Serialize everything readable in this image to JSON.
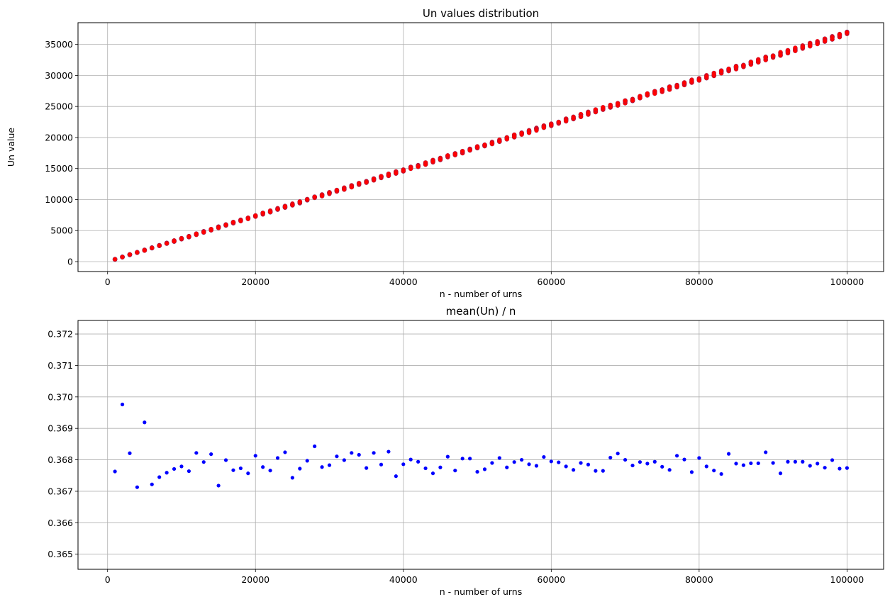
{
  "chart_data": [
    {
      "type": "scatter",
      "title": "Un values distribution",
      "xlabel": "n - number of urns",
      "ylabel": "Un value",
      "xlim": [
        -4000,
        104950
      ],
      "ylim": [
        -1600,
        38500
      ],
      "xticks": [
        0,
        20000,
        40000,
        60000,
        80000,
        100000
      ],
      "xtick_labels": [
        "0",
        "20000",
        "40000",
        "60000",
        "80000",
        "100000"
      ],
      "yticks": [
        0,
        5000,
        10000,
        15000,
        20000,
        25000,
        30000,
        35000
      ],
      "ytick_labels": [
        "0",
        "5000",
        "10000",
        "15000",
        "20000",
        "25000",
        "30000",
        "35000"
      ],
      "grid": true,
      "series": [
        {
          "color": "#ff0000",
          "marker": "circle",
          "x_range": [
            1000,
            100000
          ],
          "x_step": 1000,
          "points_per_x": 10,
          "approx_relation": "y = 0.3679 * x",
          "y_at_x_start": 368,
          "y_at_x_end": 36790
        }
      ]
    },
    {
      "type": "scatter",
      "title": "mean(Un) / n",
      "xlabel": "n - number of urns",
      "ylabel": "",
      "xlim": [
        -4000,
        104950
      ],
      "ylim": [
        0.36452,
        0.37243
      ],
      "xticks": [
        0,
        20000,
        40000,
        60000,
        80000,
        100000
      ],
      "xtick_labels": [
        "0",
        "20000",
        "40000",
        "60000",
        "80000",
        "100000"
      ],
      "yticks": [
        0.365,
        0.366,
        0.367,
        0.368,
        0.369,
        0.37,
        0.371,
        0.372
      ],
      "ytick_labels": [
        "0.365",
        "0.366",
        "0.367",
        "0.368",
        "0.369",
        "0.370",
        "0.371",
        "0.372"
      ],
      "grid": true,
      "series": [
        {
          "color": "#0000ff",
          "marker": "circle",
          "points": [
            [
              1000,
              0.36763
            ],
            [
              2000,
              0.36976
            ],
            [
              3000,
              0.36821
            ],
            [
              4000,
              0.36713
            ],
            [
              5000,
              0.36919
            ],
            [
              6000,
              0.36722
            ],
            [
              7000,
              0.36745
            ],
            [
              8000,
              0.36759
            ],
            [
              9000,
              0.36771
            ],
            [
              10000,
              0.36779
            ],
            [
              11000,
              0.36764
            ],
            [
              12000,
              0.36822
            ],
            [
              13000,
              0.36793
            ],
            [
              14000,
              0.36818
            ],
            [
              15000,
              0.36718
            ],
            [
              16000,
              0.36799
            ],
            [
              17000,
              0.36767
            ],
            [
              18000,
              0.36773
            ],
            [
              19000,
              0.36757
            ],
            [
              20000,
              0.36813
            ],
            [
              21000,
              0.36777
            ],
            [
              22000,
              0.36766
            ],
            [
              23000,
              0.36806
            ],
            [
              24000,
              0.36824
            ],
            [
              25000,
              0.36743
            ],
            [
              26000,
              0.36772
            ],
            [
              27000,
              0.36797
            ],
            [
              28000,
              0.36843
            ],
            [
              29000,
              0.36777
            ],
            [
              30000,
              0.36783
            ],
            [
              31000,
              0.36811
            ],
            [
              32000,
              0.36799
            ],
            [
              33000,
              0.36822
            ],
            [
              34000,
              0.36816
            ],
            [
              35000,
              0.36774
            ],
            [
              36000,
              0.36822
            ],
            [
              37000,
              0.36785
            ],
            [
              38000,
              0.36826
            ],
            [
              39000,
              0.36748
            ],
            [
              40000,
              0.36786
            ],
            [
              41000,
              0.36801
            ],
            [
              42000,
              0.36794
            ],
            [
              43000,
              0.36773
            ],
            [
              44000,
              0.36757
            ],
            [
              45000,
              0.36776
            ],
            [
              46000,
              0.3681
            ],
            [
              47000,
              0.36766
            ],
            [
              48000,
              0.36804
            ],
            [
              49000,
              0.36804
            ],
            [
              50000,
              0.36762
            ],
            [
              51000,
              0.3677
            ],
            [
              52000,
              0.3679
            ],
            [
              53000,
              0.36806
            ],
            [
              54000,
              0.36776
            ],
            [
              55000,
              0.36793
            ],
            [
              56000,
              0.368
            ],
            [
              57000,
              0.36786
            ],
            [
              58000,
              0.36781
            ],
            [
              59000,
              0.36809
            ],
            [
              60000,
              0.36795
            ],
            [
              61000,
              0.36792
            ],
            [
              62000,
              0.36779
            ],
            [
              63000,
              0.36768
            ],
            [
              64000,
              0.3679
            ],
            [
              65000,
              0.36785
            ],
            [
              66000,
              0.36765
            ],
            [
              67000,
              0.36765
            ],
            [
              68000,
              0.36807
            ],
            [
              69000,
              0.3682
            ],
            [
              70000,
              0.368
            ],
            [
              71000,
              0.36782
            ],
            [
              72000,
              0.36793
            ],
            [
              73000,
              0.36788
            ],
            [
              74000,
              0.36794
            ],
            [
              75000,
              0.36778
            ],
            [
              76000,
              0.36768
            ],
            [
              77000,
              0.36813
            ],
            [
              78000,
              0.36801
            ],
            [
              79000,
              0.36761
            ],
            [
              80000,
              0.36806
            ],
            [
              81000,
              0.36779
            ],
            [
              82000,
              0.36766
            ],
            [
              83000,
              0.36755
            ],
            [
              84000,
              0.36819
            ],
            [
              85000,
              0.36788
            ],
            [
              86000,
              0.36783
            ],
            [
              87000,
              0.36789
            ],
            [
              88000,
              0.36789
            ],
            [
              89000,
              0.36824
            ],
            [
              90000,
              0.3679
            ],
            [
              91000,
              0.36757
            ],
            [
              92000,
              0.36794
            ],
            [
              93000,
              0.36794
            ],
            [
              94000,
              0.36794
            ],
            [
              95000,
              0.36781
            ],
            [
              96000,
              0.36788
            ],
            [
              97000,
              0.36775
            ],
            [
              98000,
              0.36799
            ],
            [
              99000,
              0.36772
            ],
            [
              100000,
              0.36774
            ]
          ]
        }
      ]
    }
  ]
}
